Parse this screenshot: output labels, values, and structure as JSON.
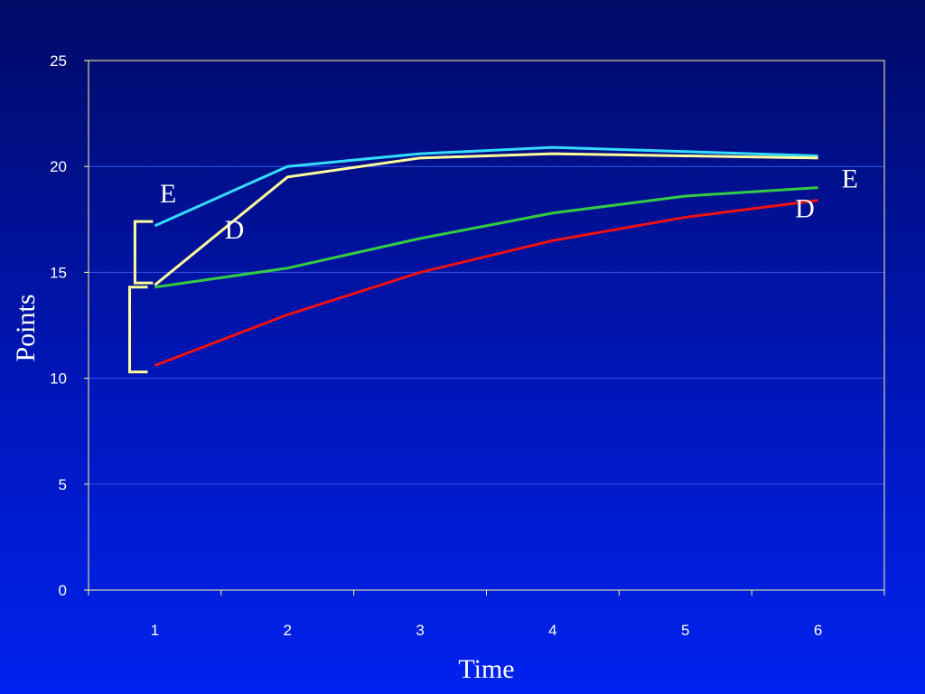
{
  "chart_data": {
    "type": "line",
    "xlabel": "Time",
    "ylabel": "Points",
    "x": [
      1,
      2,
      3,
      4,
      5,
      6
    ],
    "xlim": [
      0.5,
      6.5
    ],
    "ylim": [
      0,
      25
    ],
    "yticks": [
      0,
      5,
      10,
      15,
      20,
      25
    ],
    "grid": true,
    "legend": "none",
    "series": [
      {
        "color": "#33ddff",
        "values": [
          17.2,
          20.0,
          20.6,
          20.9,
          20.7,
          20.5
        ]
      },
      {
        "color": "#ffff99",
        "values": [
          14.4,
          19.5,
          20.4,
          20.6,
          20.5,
          20.4
        ]
      },
      {
        "color": "#33cc44",
        "values": [
          14.3,
          15.2,
          16.6,
          17.8,
          18.6,
          19.0
        ]
      },
      {
        "color": "#ee1111",
        "values": [
          10.6,
          13.0,
          15.0,
          16.5,
          17.6,
          18.4
        ]
      }
    ],
    "annotations": [
      {
        "text": "E",
        "x": 1.1,
        "y": 18.3
      },
      {
        "text": "D",
        "x": 1.6,
        "y": 16.6
      },
      {
        "text": "E",
        "x": 6.24,
        "y": 19.0
      },
      {
        "text": "D",
        "x": 5.9,
        "y": 17.6
      }
    ],
    "brackets": [
      {
        "x": 0.85,
        "y_top": 17.4,
        "y_bottom": 14.5,
        "color": "#ffff99"
      },
      {
        "x": 0.81,
        "y_top": 14.3,
        "y_bottom": 10.3,
        "color": "#ffff99"
      }
    ]
  }
}
